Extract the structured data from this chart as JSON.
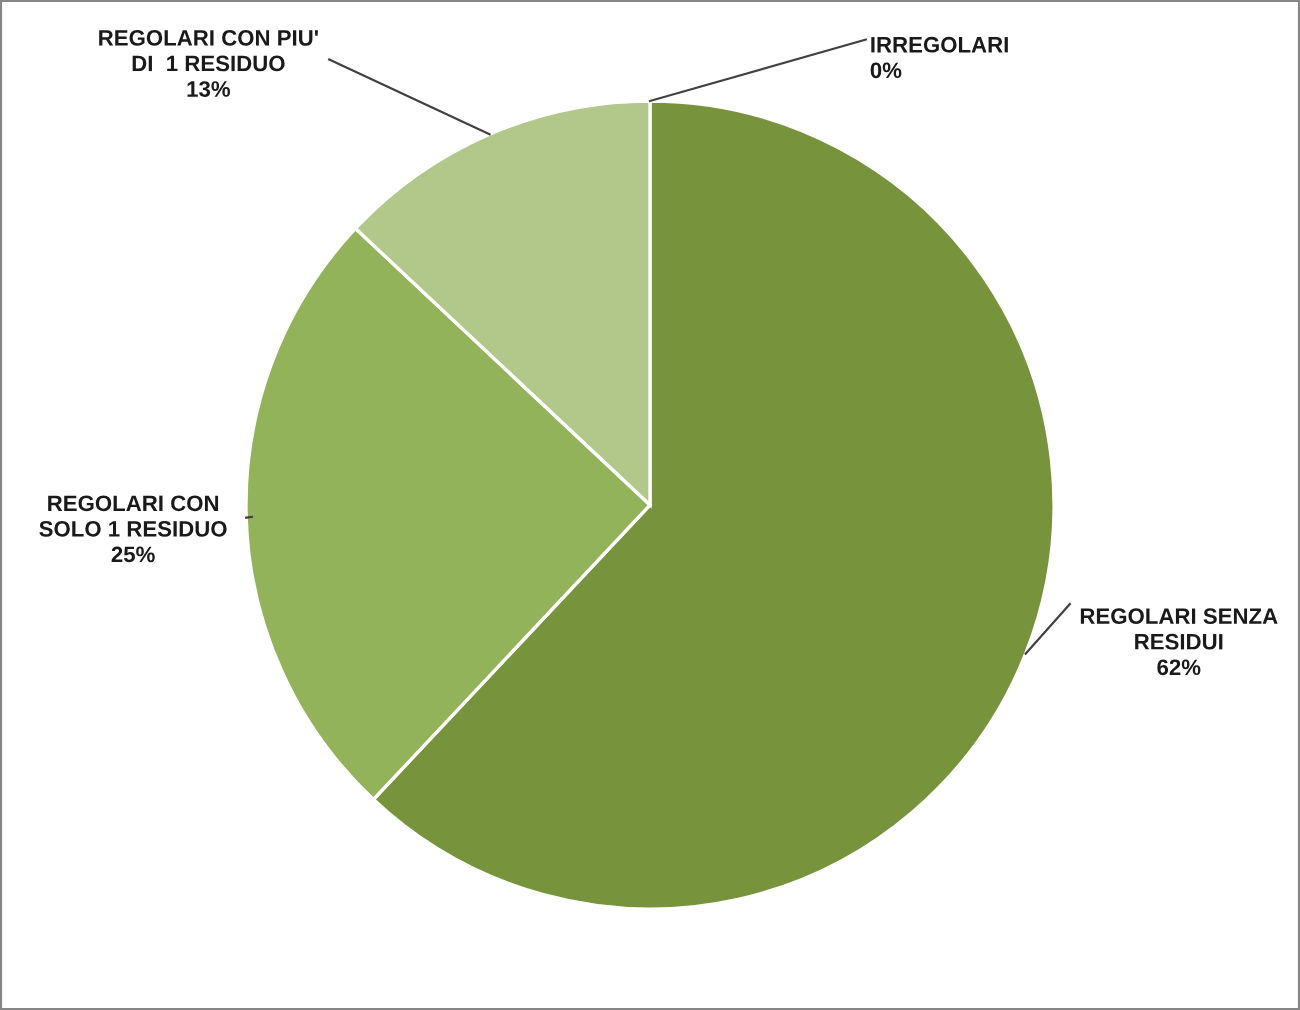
{
  "chart_data": {
    "type": "pie",
    "categories": [
      "IRREGOLARI",
      "REGOLARI SENZA\nRESIDUI",
      "REGOLARI CON\nSOLO 1 RESIDUO",
      "REGOLARI CON PIU'\nDI  1 RESIDUO"
    ],
    "values": [
      0,
      62,
      25,
      13
    ],
    "value_labels": [
      "0%",
      "62%",
      "25%",
      "13%"
    ],
    "colors": [
      "#4f6228",
      "#77933c",
      "#93b35a",
      "#b1c88a"
    ]
  }
}
